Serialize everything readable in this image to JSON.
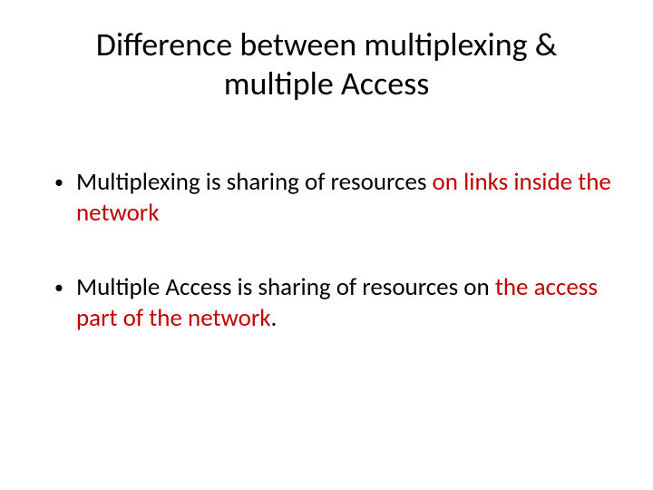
{
  "colors": {
    "background": "#ffffff",
    "text_black": "#000000",
    "text_red": "#c00000"
  },
  "typography": {
    "title_fontsize": 36,
    "body_fontsize": 27,
    "font_family": "Calibri"
  },
  "title": "Difference between multiplexing & multiple Access",
  "bullets": [
    {
      "marker": "•",
      "black1": "Multiplexing is sharing of resources ",
      "red": "on links inside the network",
      "black2": ""
    },
    {
      "marker": "•",
      "black1": "Multiple Access is sharing of resources on ",
      "red": "the access part of the network",
      "black2": "."
    }
  ]
}
